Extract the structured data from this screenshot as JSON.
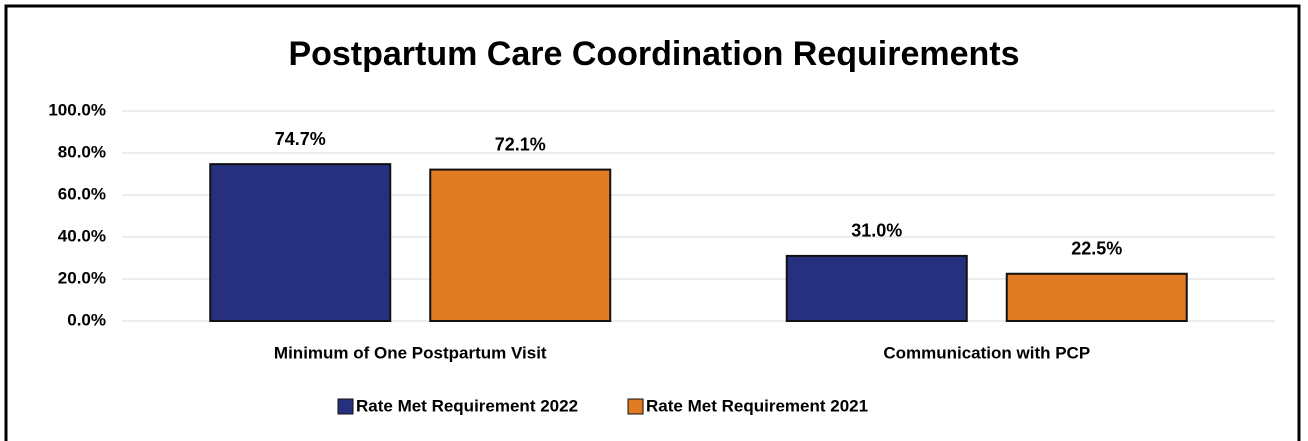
{
  "chart_data": {
    "type": "bar",
    "title": "Postpartum Care Coordination Requirements",
    "categories": [
      "Minimum of One Postpartum Visit",
      "Communication with PCP"
    ],
    "series": [
      {
        "name": "Rate Met Requirement 2022",
        "color": "#26307f",
        "values": [
          74.7,
          31.0
        ],
        "value_labels": [
          "74.7%",
          "31.0%"
        ]
      },
      {
        "name": "Rate Met Requirement 2021",
        "color": "#e07b24",
        "values": [
          72.1,
          22.5
        ],
        "value_labels": [
          "72.1%",
          "22.5%"
        ]
      }
    ],
    "ylim": [
      0,
      100
    ],
    "yticks": [
      {
        "value": 0,
        "label": "0.0%"
      },
      {
        "value": 20,
        "label": "20.0%"
      },
      {
        "value": 40,
        "label": "40.0%"
      },
      {
        "value": 60,
        "label": "60.0%"
      },
      {
        "value": 80,
        "label": "80.0%"
      },
      {
        "value": 100,
        "label": "100.0%"
      }
    ],
    "grid": true,
    "legend": "bottom"
  }
}
